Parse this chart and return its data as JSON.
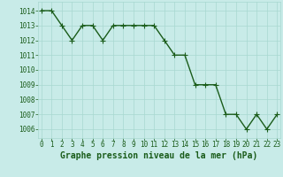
{
  "x": [
    0,
    1,
    2,
    3,
    4,
    5,
    6,
    7,
    8,
    9,
    10,
    11,
    12,
    13,
    14,
    15,
    16,
    17,
    18,
    19,
    20,
    21,
    22,
    23
  ],
  "y": [
    1014,
    1014,
    1013,
    1012,
    1013,
    1013,
    1012,
    1013,
    1013,
    1013,
    1013,
    1013,
    1012,
    1011,
    1011,
    1009,
    1009,
    1009,
    1007,
    1007,
    1006,
    1007,
    1006,
    1007
  ],
  "line_color": "#1a5c1a",
  "marker_color": "#1a5c1a",
  "bg_color": "#c8ebe8",
  "grid_color": "#a8d8d0",
  "xlabel": "Graphe pression niveau de la mer (hPa)",
  "xlabel_color": "#1a5c1a",
  "xlabel_fontsize": 7,
  "xtick_labels": [
    "0",
    "1",
    "2",
    "3",
    "4",
    "5",
    "6",
    "7",
    "8",
    "9",
    "10",
    "11",
    "12",
    "13",
    "14",
    "15",
    "16",
    "17",
    "18",
    "19",
    "20",
    "21",
    "22",
    "23"
  ],
  "ytick_min": 1006,
  "ytick_max": 1014,
  "ylim_min": 1005.4,
  "ylim_max": 1014.6,
  "xlim_min": -0.3,
  "xlim_max": 23.3,
  "tick_color": "#1a5c1a",
  "tick_fontsize": 5.5,
  "marker_size": 2.2,
  "line_width": 1.0
}
